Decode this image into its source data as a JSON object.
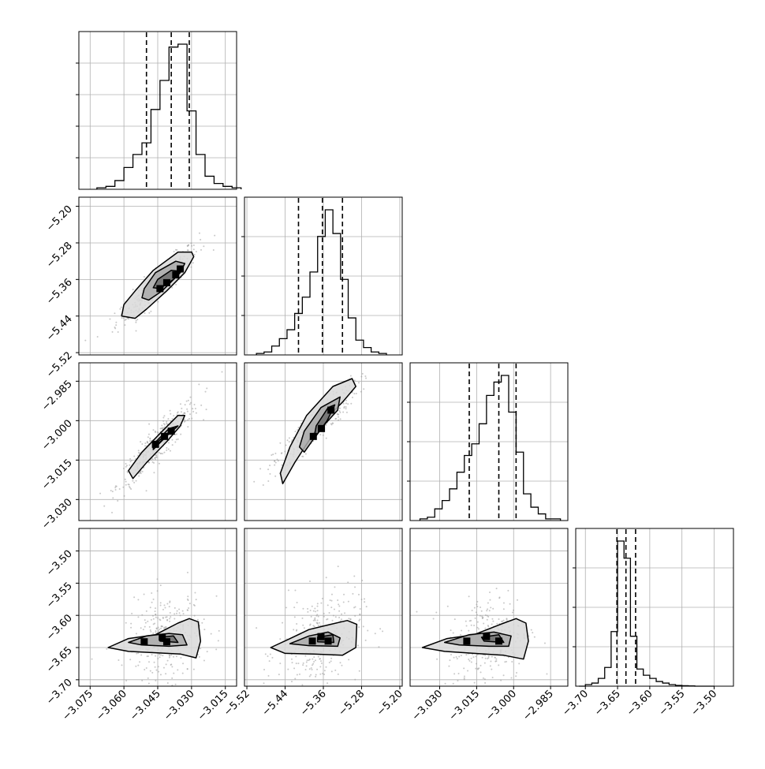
{
  "figure": {
    "type": "corner plot",
    "colors": {
      "grid": "#b0b0b0",
      "line": "#000000",
      "scatter": "#9a9a9a",
      "fill_levels": [
        "#d9d9d9",
        "#a9a9a9",
        "#6f6f6f",
        "#2f2f2f",
        "#000000"
      ]
    },
    "grid": true,
    "quantile_lines": "dashed"
  },
  "chart_data": [
    {
      "type": "histogram",
      "panel": "p1",
      "bins": [
        -3.072,
        -3.068,
        -3.064,
        -3.06,
        -3.056,
        -3.052,
        -3.048,
        -3.044,
        -3.04,
        -3.036,
        -3.032,
        -3.028,
        -3.024,
        -3.02,
        -3.016,
        -3.012
      ],
      "counts": [
        0.01,
        0.02,
        0.06,
        0.15,
        0.24,
        0.32,
        0.55,
        0.75,
        0.98,
        1.0,
        0.54,
        0.24,
        0.09,
        0.04,
        0.02,
        0.01
      ],
      "quantiles": [
        -3.05,
        -3.039,
        -3.031
      ],
      "xlim": [
        -3.08,
        -3.01
      ],
      "ytick_count": 4,
      "xticks": [
        -3.075,
        -3.06,
        -3.045,
        -3.03,
        -3.015
      ]
    },
    {
      "type": "histogram",
      "panel": "p2",
      "bins": [
        -5.5,
        -5.484,
        -5.468,
        -5.452,
        -5.436,
        -5.42,
        -5.404,
        -5.388,
        -5.372,
        -5.356,
        -5.34,
        -5.324,
        -5.308,
        -5.292,
        -5.276,
        -5.26,
        -5.244
      ],
      "counts": [
        0.01,
        0.02,
        0.06,
        0.11,
        0.17,
        0.28,
        0.39,
        0.56,
        0.8,
        0.98,
        0.82,
        0.51,
        0.25,
        0.1,
        0.05,
        0.02,
        0.01
      ],
      "quantiles": [
        -5.412,
        -5.362,
        -5.32
      ],
      "xlim": [
        -5.525,
        -5.195
      ],
      "ytick_count": 3
    },
    {
      "type": "histogram",
      "panel": "p3",
      "bins": [
        -3.038,
        -3.035,
        -3.032,
        -3.029,
        -3.026,
        -3.023,
        -3.02,
        -3.017,
        -3.014,
        -3.011,
        -3.008,
        -3.005,
        -3.002,
        -2.999,
        -2.996,
        -2.993,
        -2.99,
        -2.987,
        -2.984
      ],
      "counts": [
        0.01,
        0.02,
        0.07,
        0.12,
        0.19,
        0.29,
        0.39,
        0.46,
        0.58,
        0.75,
        0.83,
        0.87,
        0.65,
        0.41,
        0.16,
        0.08,
        0.04,
        0.01,
        0.01
      ],
      "quantiles": [
        -3.018,
        -3.006,
        -2.999
      ],
      "xlim": [
        -3.042,
        -2.978
      ],
      "ytick_count": 3
    },
    {
      "type": "histogram",
      "panel": "p4",
      "bins": [
        -3.71,
        -3.7,
        -3.69,
        -3.68,
        -3.67,
        -3.66,
        -3.65,
        -3.64,
        -3.63,
        -3.62,
        -3.61,
        -3.6,
        -3.59,
        -3.58,
        -3.57,
        -3.56,
        -3.55,
        -3.54,
        -3.53,
        -3.52,
        -3.51
      ],
      "counts": [
        0.0,
        0.01,
        0.02,
        0.05,
        0.12,
        0.35,
        0.93,
        0.82,
        0.32,
        0.11,
        0.07,
        0.05,
        0.03,
        0.02,
        0.01,
        0.005,
        0.003,
        0.002,
        0.0,
        0.0,
        0.0
      ],
      "quantiles": [
        -3.651,
        -3.637,
        -3.622
      ],
      "xlim": [
        -3.715,
        -3.47
      ],
      "ytick_count": 3
    },
    {
      "type": "scatter",
      "panel": "s21",
      "x_range": [
        -3.07,
        -3.015
      ],
      "y_range": [
        -5.49,
        -5.225
      ],
      "xlim": [
        -3.08,
        -3.01
      ],
      "ylim": [
        -5.525,
        -5.18
      ],
      "yticks": [
        -5.52,
        -5.44,
        -5.36,
        -5.28,
        -5.2
      ],
      "contours": [
        [
          [
            -3.055,
            -5.445
          ],
          [
            -3.05,
            -5.425
          ],
          [
            -3.041,
            -5.385
          ],
          [
            -3.033,
            -5.345
          ],
          [
            -3.029,
            -5.31
          ],
          [
            -3.03,
            -5.3
          ],
          [
            -3.036,
            -5.3
          ],
          [
            -3.047,
            -5.34
          ],
          [
            -3.055,
            -5.385
          ],
          [
            -3.06,
            -5.415
          ],
          [
            -3.061,
            -5.44
          ]
        ],
        [
          [
            -3.049,
            -5.405
          ],
          [
            -3.043,
            -5.385
          ],
          [
            -3.035,
            -5.345
          ],
          [
            -3.033,
            -5.325
          ],
          [
            -3.037,
            -5.32
          ],
          [
            -3.046,
            -5.345
          ],
          [
            -3.051,
            -5.38
          ],
          [
            -3.052,
            -5.4
          ]
        ],
        [
          [
            -3.044,
            -5.38
          ],
          [
            -3.038,
            -5.36
          ],
          [
            -3.035,
            -5.342
          ],
          [
            -3.039,
            -5.34
          ],
          [
            -3.045,
            -5.36
          ],
          [
            -3.047,
            -5.378
          ]
        ]
      ],
      "cells": [
        [
          -3.041,
          -5.367
        ],
        [
          -3.037,
          -5.35
        ],
        [
          -3.044,
          -5.38
        ],
        [
          -3.035,
          -5.337
        ]
      ]
    },
    {
      "type": "scatter",
      "panel": "s31",
      "x_range": [
        -3.072,
        -3.018
      ],
      "y_range": [
        -3.033,
        -2.982
      ],
      "xlim": [
        -3.08,
        -3.01
      ],
      "ylim": [
        -3.038,
        -2.978
      ],
      "yticks": [
        -3.03,
        -3.015,
        -3.0,
        -2.985
      ],
      "contours": [
        [
          [
            -3.056,
            -3.022
          ],
          [
            -3.05,
            -3.016
          ],
          [
            -3.041,
            -3.008
          ],
          [
            -3.035,
            -3.002
          ],
          [
            -3.033,
            -2.998
          ],
          [
            -3.036,
            -2.998
          ],
          [
            -3.043,
            -3.004
          ],
          [
            -3.052,
            -3.012
          ],
          [
            -3.058,
            -3.019
          ]
        ],
        [
          [
            -3.047,
            -3.011
          ],
          [
            -3.04,
            -3.005
          ],
          [
            -3.036,
            -3.002
          ],
          [
            -3.04,
            -3.003
          ],
          [
            -3.047,
            -3.009
          ]
        ],
        [
          [
            -3.045,
            -3.009
          ],
          [
            -3.039,
            -3.004
          ],
          [
            -3.041,
            -3.005
          ],
          [
            -3.045,
            -3.008
          ]
        ]
      ],
      "cells": [
        [
          -3.042,
          -3.006
        ],
        [
          -3.039,
          -3.004
        ],
        [
          -3.046,
          -3.009
        ]
      ]
    },
    {
      "type": "scatter",
      "panel": "s32",
      "x_range": [
        -5.49,
        -5.225
      ],
      "y_range": [
        -3.034,
        -2.985
      ],
      "xlim": [
        -5.525,
        -5.195
      ],
      "ylim": [
        -3.038,
        -2.978
      ],
      "contours": [
        [
          [
            -5.445,
            -3.024
          ],
          [
            -5.42,
            -3.016
          ],
          [
            -5.37,
            -3.002
          ],
          [
            -5.32,
            -2.993
          ],
          [
            -5.292,
            -2.987
          ],
          [
            -5.3,
            -2.984
          ],
          [
            -5.34,
            -2.987
          ],
          [
            -5.395,
            -2.998
          ],
          [
            -5.43,
            -3.01
          ],
          [
            -5.45,
            -3.02
          ]
        ],
        [
          [
            -5.4,
            -3.012
          ],
          [
            -5.365,
            -3.003
          ],
          [
            -5.33,
            -2.996
          ],
          [
            -5.325,
            -2.991
          ],
          [
            -5.365,
            -2.995
          ],
          [
            -5.4,
            -3.004
          ],
          [
            -5.41,
            -3.01
          ]
        ],
        [
          [
            -5.38,
            -3.007
          ],
          [
            -5.352,
            -3.0
          ],
          [
            -5.336,
            -2.994
          ],
          [
            -5.35,
            -2.995
          ],
          [
            -5.375,
            -3.002
          ]
        ]
      ],
      "cells": [
        [
          -5.364,
          -3.003
        ],
        [
          -5.344,
          -2.996
        ],
        [
          -5.381,
          -3.006
        ]
      ]
    },
    {
      "type": "scatter",
      "panel": "s41",
      "x_range": [
        -3.07,
        -3.018
      ],
      "y_range": [
        -3.705,
        -3.48
      ],
      "xlim": [
        -3.08,
        -3.01
      ],
      "ylim": [
        -3.71,
        -3.465
      ],
      "yticks": [
        -3.7,
        -3.65,
        -3.6,
        -3.55,
        -3.5
      ],
      "contours": [
        [
          [
            -3.067,
            -3.65
          ],
          [
            -3.058,
            -3.636
          ],
          [
            -3.046,
            -3.63
          ],
          [
            -3.036,
            -3.612
          ],
          [
            -3.031,
            -3.605
          ],
          [
            -3.027,
            -3.61
          ],
          [
            -3.026,
            -3.64
          ],
          [
            -3.028,
            -3.666
          ],
          [
            -3.035,
            -3.66
          ],
          [
            -3.046,
            -3.658
          ],
          [
            -3.058,
            -3.656
          ]
        ],
        [
          [
            -3.058,
            -3.642
          ],
          [
            -3.05,
            -3.632
          ],
          [
            -3.04,
            -3.628
          ],
          [
            -3.034,
            -3.63
          ],
          [
            -3.032,
            -3.646
          ],
          [
            -3.04,
            -3.648
          ],
          [
            -3.052,
            -3.646
          ]
        ],
        [
          [
            -3.044,
            -3.634
          ],
          [
            -3.038,
            -3.632
          ],
          [
            -3.036,
            -3.642
          ],
          [
            -3.044,
            -3.64
          ]
        ]
      ],
      "cells": [
        [
          -3.043,
          -3.634
        ],
        [
          -3.041,
          -3.641
        ],
        [
          -3.051,
          -3.641
        ]
      ]
    },
    {
      "type": "scatter",
      "panel": "s42",
      "x_range": [
        -5.49,
        -5.225
      ],
      "y_range": [
        -3.705,
        -3.48
      ],
      "xlim": [
        -5.525,
        -5.195
      ],
      "ylim": [
        -3.71,
        -3.465
      ],
      "contours": [
        [
          [
            -5.47,
            -3.65
          ],
          [
            -5.435,
            -3.638
          ],
          [
            -5.39,
            -3.622
          ],
          [
            -5.345,
            -3.614
          ],
          [
            -5.31,
            -3.608
          ],
          [
            -5.29,
            -3.614
          ],
          [
            -5.292,
            -3.65
          ],
          [
            -5.32,
            -3.662
          ],
          [
            -5.38,
            -3.66
          ],
          [
            -5.44,
            -3.659
          ]
        ],
        [
          [
            -5.43,
            -3.644
          ],
          [
            -5.39,
            -3.632
          ],
          [
            -5.35,
            -3.626
          ],
          [
            -5.325,
            -3.635
          ],
          [
            -5.33,
            -3.648
          ],
          [
            -5.39,
            -3.647
          ]
        ],
        [
          [
            -5.372,
            -3.634
          ],
          [
            -5.34,
            -3.63
          ],
          [
            -5.338,
            -3.642
          ],
          [
            -5.372,
            -3.641
          ]
        ]
      ],
      "cells": [
        [
          -5.365,
          -3.633
        ],
        [
          -5.35,
          -3.64
        ],
        [
          -5.383,
          -3.64
        ]
      ]
    },
    {
      "type": "scatter",
      "panel": "s43",
      "x_range": [
        -3.036,
        -2.985
      ],
      "y_range": [
        -3.705,
        -3.48
      ],
      "xlim": [
        -3.042,
        -2.978
      ],
      "ylim": [
        -3.71,
        -3.465
      ],
      "contours": [
        [
          [
            -3.037,
            -3.65
          ],
          [
            -3.027,
            -3.636
          ],
          [
            -3.016,
            -3.63
          ],
          [
            -3.004,
            -3.612
          ],
          [
            -2.999,
            -3.605
          ],
          [
            -2.995,
            -3.612
          ],
          [
            -2.994,
            -3.64
          ],
          [
            -2.996,
            -3.668
          ],
          [
            -3.004,
            -3.662
          ],
          [
            -3.016,
            -3.659
          ],
          [
            -3.028,
            -3.656
          ]
        ],
        [
          [
            -3.028,
            -3.642
          ],
          [
            -3.018,
            -3.63
          ],
          [
            -3.008,
            -3.626
          ],
          [
            -3.001,
            -3.632
          ],
          [
            -3.002,
            -3.648
          ],
          [
            -3.01,
            -3.648
          ],
          [
            -3.022,
            -3.646
          ]
        ],
        [
          [
            -3.013,
            -3.634
          ],
          [
            -3.006,
            -3.63
          ],
          [
            -3.004,
            -3.642
          ],
          [
            -3.012,
            -3.64
          ]
        ]
      ],
      "cells": [
        [
          -3.011,
          -3.633
        ],
        [
          -3.006,
          -3.64
        ],
        [
          -3.019,
          -3.64
        ]
      ]
    },
    {
      "type": "axis",
      "role": "bottom-ticks",
      "col1": [
        -3.075,
        -3.06,
        -3.045,
        -3.03,
        -3.015
      ],
      "col2": [
        -5.52,
        -5.44,
        -5.36,
        -5.28,
        -5.2
      ],
      "col3": [
        -3.03,
        -3.015,
        -3.0,
        -2.985
      ],
      "col4": [
        -3.7,
        -3.65,
        -3.6,
        -3.55,
        -3.5
      ]
    }
  ],
  "tick_labels": {
    "bottom_col1": [
      "−3.075",
      "−3.060",
      "−3.045",
      "−3.030",
      "−3.015"
    ],
    "bottom_col2": [
      "−5.52",
      "−5.44",
      "−5.36",
      "−5.28",
      "−5.20"
    ],
    "bottom_col3": [
      "−3.030",
      "−3.015",
      "−3.000",
      "−2.985"
    ],
    "bottom_col4": [
      "−3.70",
      "−3.65",
      "−3.60",
      "−3.55",
      "−3.50"
    ],
    "left_row2": [
      "−5.52",
      "−5.44",
      "−5.36",
      "−5.28",
      "−5.20"
    ],
    "left_row3": [
      "−3.030",
      "−3.015",
      "−3.000",
      "−2.985"
    ],
    "left_row4": [
      "−3.70",
      "−3.65",
      "−3.60",
      "−3.55",
      "−3.50"
    ]
  }
}
